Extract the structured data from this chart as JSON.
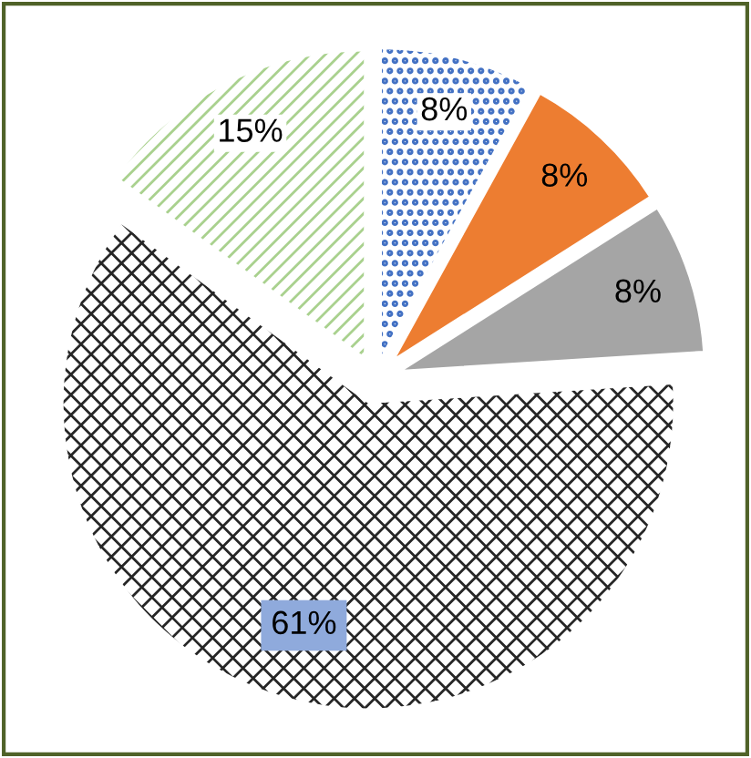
{
  "chart_data": {
    "type": "pie",
    "categories": [
      null,
      null,
      null,
      null,
      null
    ],
    "values": [
      8,
      8,
      8,
      61,
      15
    ],
    "value_labels": [
      "8%",
      "8%",
      "8%",
      "61%",
      "15%"
    ],
    "colors": [
      "#4472c4",
      "#ed7d31",
      "#a5a5a5",
      "#262626",
      "#a9d18e"
    ],
    "legend": false
  }
}
